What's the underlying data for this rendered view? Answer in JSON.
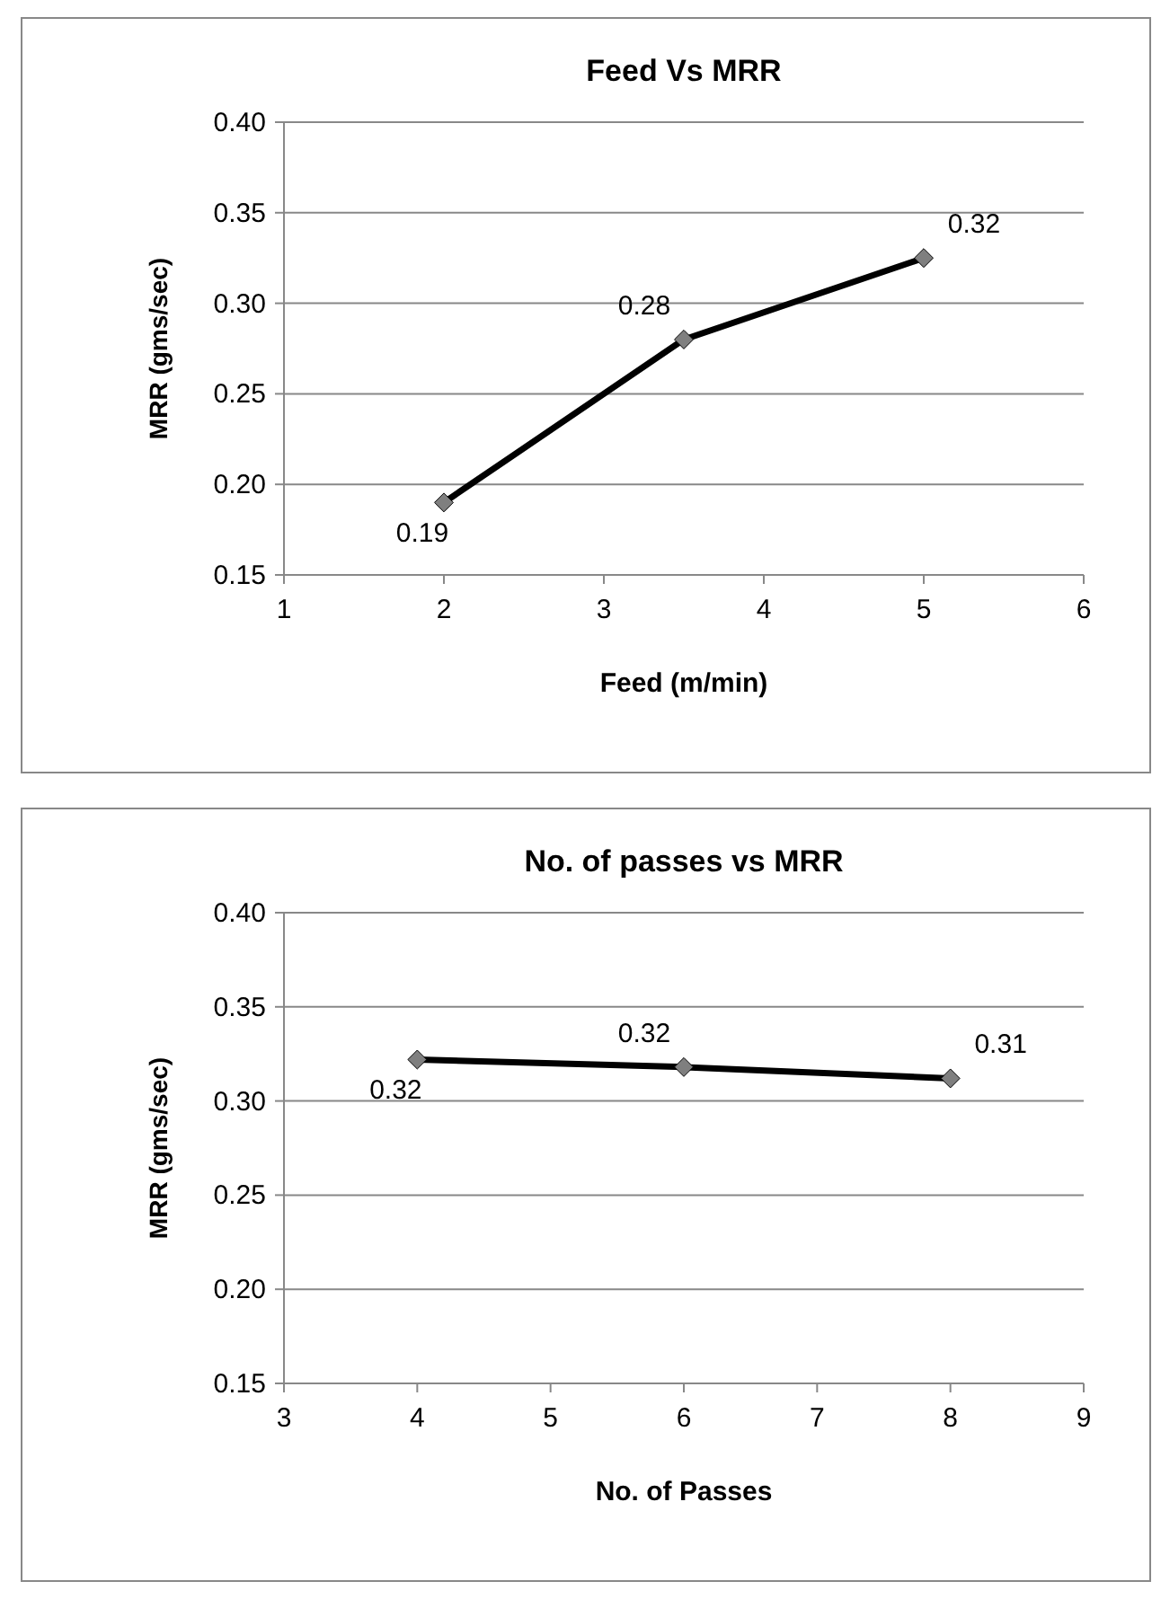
{
  "chart_data": [
    {
      "type": "line",
      "title": "Feed Vs MRR",
      "xlabel": "Feed  (m/min)",
      "ylabel": "MRR (gms/sec)",
      "x": [
        2,
        3.5,
        5
      ],
      "values": [
        0.19,
        0.28,
        0.325
      ],
      "value_labels": [
        "0.19",
        "0.28",
        "0.32"
      ],
      "color": "#000000",
      "xlim": [
        1,
        6
      ],
      "xticks": [
        1,
        2,
        3,
        4,
        5,
        6
      ],
      "ylim": [
        0.15,
        0.4
      ],
      "yticks": [
        {
          "value": 0.15,
          "label": "0.15"
        },
        {
          "value": 0.2,
          "label": "0.20"
        },
        {
          "value": 0.25,
          "label": "0.25"
        },
        {
          "value": 0.3,
          "label": "0.30"
        },
        {
          "value": 0.35,
          "label": "0.35"
        },
        {
          "value": 0.4,
          "label": "0.40"
        }
      ],
      "grid": "y",
      "marker": "diamond"
    },
    {
      "type": "line",
      "title": "No. of passes vs MRR",
      "xlabel": "No. of Passes",
      "ylabel": "MRR (gms/sec)",
      "x": [
        4,
        6,
        8
      ],
      "values": [
        0.322,
        0.318,
        0.312
      ],
      "value_labels": [
        "0.32",
        "0.32",
        "0.31"
      ],
      "color": "#000000",
      "xlim": [
        3,
        9
      ],
      "xticks": [
        3,
        4,
        5,
        6,
        7,
        8,
        9
      ],
      "ylim": [
        0.15,
        0.4
      ],
      "yticks": [
        {
          "value": 0.15,
          "label": "0.15"
        },
        {
          "value": 0.2,
          "label": "0.20"
        },
        {
          "value": 0.25,
          "label": "0.25"
        },
        {
          "value": 0.3,
          "label": "0.30"
        },
        {
          "value": 0.35,
          "label": "0.35"
        },
        {
          "value": 0.4,
          "label": "0.40"
        }
      ],
      "grid": "y",
      "marker": "diamond"
    }
  ]
}
